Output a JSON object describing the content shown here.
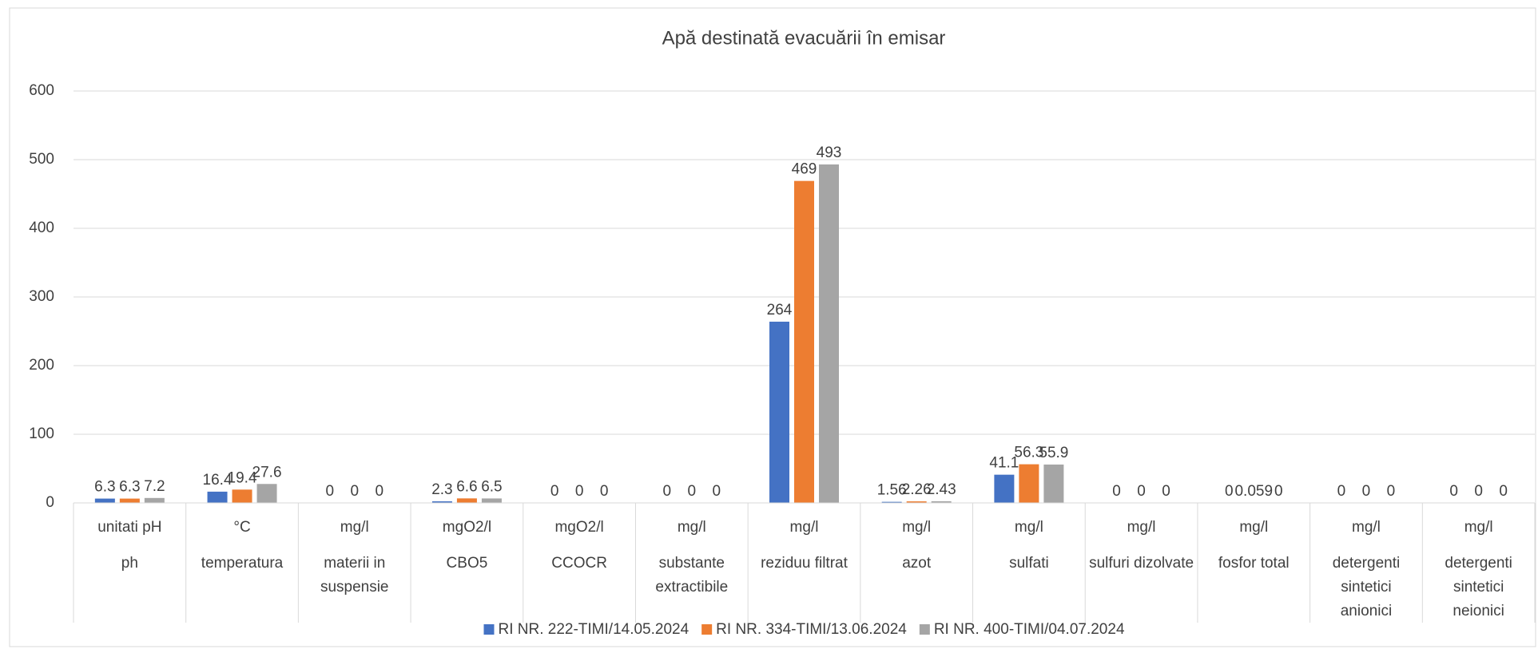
{
  "chart_data": {
    "type": "bar",
    "title": "Apă destinată evacuării în emisar",
    "categories": [
      "ph",
      "temperatura",
      "materii in suspensie",
      "CBO5",
      "CCOCR",
      "substante extractibile",
      "reziduu filtrat",
      "azot",
      "sulfati",
      "sulfuri dizolvate",
      "fosfor total",
      "detergenti sintetici anionici",
      "detergenti sintetici neionici"
    ],
    "units": [
      "unitati pH",
      "°C",
      "mg/l",
      "mgO2/l",
      "mgO2/l",
      "mg/l",
      "mg/l",
      "mg/l",
      "mg/l",
      "mg/l",
      "mg/l",
      "mg/l",
      "mg/l"
    ],
    "series": [
      {
        "name": "RI NR. 222-TIMI/14.05.2024",
        "color": "#4472c4",
        "values": [
          6.3,
          16.4,
          0,
          2.3,
          0,
          0,
          264,
          1.56,
          41.1,
          0,
          0,
          0,
          0
        ]
      },
      {
        "name": "RI NR. 334-TIMI/13.06.2024",
        "color": "#ed7d31",
        "values": [
          6.3,
          19.4,
          0,
          6.6,
          0,
          0,
          469,
          2.26,
          56.3,
          0,
          0.059,
          0,
          0
        ]
      },
      {
        "name": "RI NR. 400-TIMI/04.07.2024",
        "color": "#a5a5a5",
        "values": [
          7.2,
          27.6,
          0,
          6.5,
          0,
          0,
          493,
          2.43,
          55.9,
          0,
          0,
          0,
          0
        ]
      }
    ],
    "ylim": [
      0,
      600
    ],
    "yticks": [
      0,
      100,
      200,
      300,
      400,
      500,
      600
    ],
    "grid": true,
    "legend": "bottom"
  }
}
